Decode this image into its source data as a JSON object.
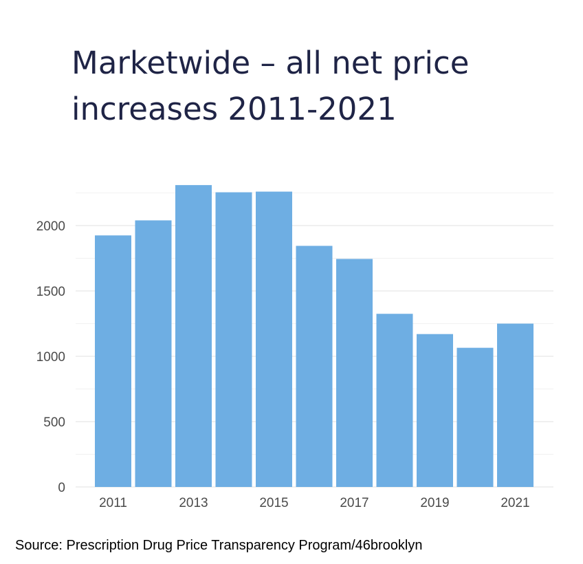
{
  "title_lines": [
    "Marketwide – all net price",
    "increases 2011-2021"
  ],
  "source": "Source: Prescription Drug Price Transparency Program/46brooklyn",
  "colors": {
    "bar": "#6eaee3",
    "grid": "#ececec",
    "title": "#1f2446"
  },
  "chart_data": {
    "type": "bar",
    "title": "Marketwide – all net price increases 2011-2021",
    "xlabel": "",
    "ylabel": "",
    "categories": [
      "2011",
      "2012",
      "2013",
      "2014",
      "2015",
      "2016",
      "2017",
      "2018",
      "2019",
      "2020",
      "2021"
    ],
    "x_tick_labels": [
      "2011",
      "",
      "2013",
      "",
      "2015",
      "",
      "2017",
      "",
      "2019",
      "",
      "2021"
    ],
    "values": [
      1925,
      2040,
      2310,
      2255,
      2260,
      1845,
      1745,
      1325,
      1170,
      1065,
      1250
    ],
    "ylim": [
      0,
      2300
    ],
    "y_ticks": [
      0,
      500,
      1000,
      1500,
      2000
    ],
    "grid": true,
    "legend": "none"
  }
}
